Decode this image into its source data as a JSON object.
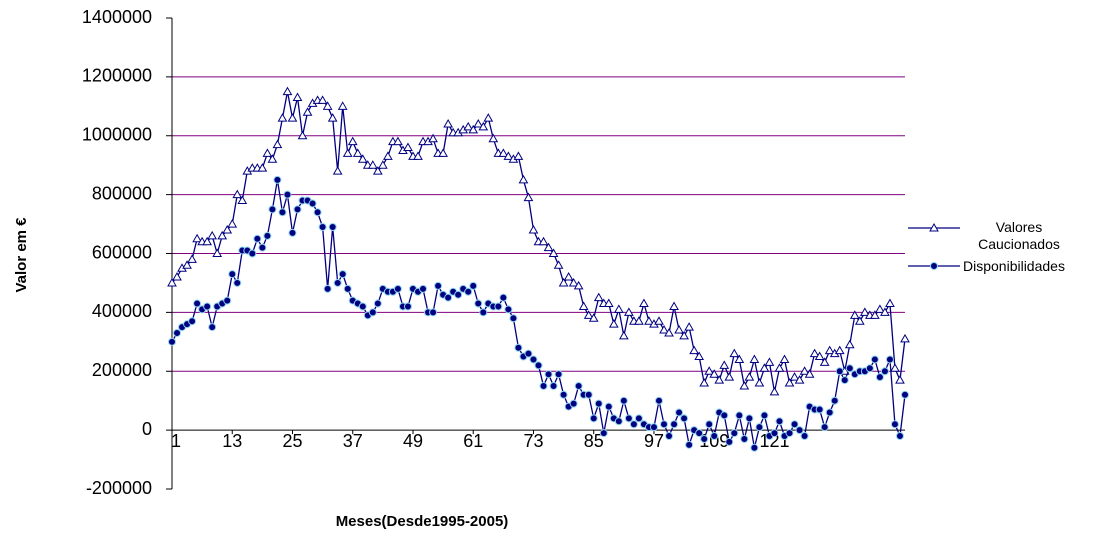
{
  "chart_data": {
    "type": "line",
    "x_label": "Meses(Desde1995-2005)",
    "y_label": "Valor em €",
    "x": [
      1,
      2,
      3,
      4,
      5,
      6,
      7,
      8,
      9,
      10,
      11,
      12,
      13,
      14,
      15,
      16,
      17,
      18,
      19,
      20,
      21,
      22,
      23,
      24,
      25,
      26,
      27,
      28,
      29,
      30,
      31,
      32,
      33,
      34,
      35,
      36,
      37,
      38,
      39,
      40,
      41,
      42,
      43,
      44,
      45,
      46,
      47,
      48,
      49,
      50,
      51,
      52,
      53,
      54,
      55,
      56,
      57,
      58,
      59,
      60,
      61,
      62,
      63,
      64,
      65,
      66,
      67,
      68,
      69,
      70,
      71,
      72,
      73,
      74,
      75,
      76,
      77,
      78,
      79,
      80,
      81,
      82,
      83,
      84,
      85,
      86,
      87,
      88,
      89,
      90,
      91,
      92,
      93,
      94,
      95,
      96,
      97,
      98,
      99,
      100,
      101,
      102,
      103,
      104,
      105,
      106,
      107,
      108,
      109,
      110,
      111,
      112,
      113,
      114,
      115,
      116,
      117,
      118,
      119,
      120,
      121,
      122,
      123,
      124,
      125,
      126,
      127,
      128,
      129,
      130,
      131,
      132,
      133,
      134,
      135,
      136,
      137,
      138,
      139,
      140,
      141,
      142,
      143,
      144,
      145,
      146,
      147
    ],
    "xlim": [
      1,
      147
    ],
    "xticks": [
      1,
      13,
      25,
      37,
      49,
      61,
      73,
      85,
      97,
      109,
      121
    ],
    "ylim": [
      -200000,
      1400000
    ],
    "yticks": [
      -200000,
      0,
      200000,
      400000,
      600000,
      800000,
      1000000,
      1200000,
      1400000
    ],
    "grid": true,
    "legend": "right",
    "series": [
      {
        "name": "Valores Caucionados",
        "color": "#000080",
        "marker": "triangle",
        "values": [
          500000,
          520000,
          550000,
          560000,
          580000,
          650000,
          640000,
          640000,
          660000,
          600000,
          660000,
          680000,
          700000,
          800000,
          780000,
          880000,
          890000,
          890000,
          890000,
          940000,
          920000,
          970000,
          1060000,
          1150000,
          1060000,
          1130000,
          1000000,
          1080000,
          1110000,
          1120000,
          1120000,
          1100000,
          1060000,
          880000,
          1100000,
          940000,
          980000,
          940000,
          920000,
          900000,
          900000,
          880000,
          900000,
          930000,
          980000,
          980000,
          950000,
          960000,
          930000,
          930000,
          980000,
          980000,
          990000,
          940000,
          940000,
          1040000,
          1010000,
          1010000,
          1020000,
          1030000,
          1020000,
          1040000,
          1030000,
          1060000,
          990000,
          940000,
          940000,
          930000,
          920000,
          930000,
          850000,
          790000,
          680000,
          640000,
          640000,
          620000,
          600000,
          560000,
          500000,
          520000,
          500000,
          490000,
          420000,
          390000,
          380000,
          450000,
          430000,
          430000,
          360000,
          410000,
          320000,
          400000,
          370000,
          370000,
          430000,
          370000,
          360000,
          370000,
          340000,
          330000,
          420000,
          340000,
          320000,
          350000,
          270000,
          250000,
          160000,
          200000,
          190000,
          170000,
          220000,
          180000,
          260000,
          240000,
          150000,
          180000,
          240000,
          160000,
          210000,
          230000,
          130000,
          210000,
          240000,
          160000,
          180000,
          170000,
          200000,
          190000,
          260000,
          250000,
          230000,
          270000,
          260000,
          270000,
          200000,
          290000,
          390000,
          370000,
          400000,
          390000,
          390000,
          410000,
          400000,
          430000,
          210000,
          170000,
          310000
        ]
      },
      {
        "name": "Disponibilidades",
        "color": "#000080",
        "marker": "circle",
        "values": [
          300000,
          330000,
          350000,
          360000,
          370000,
          430000,
          410000,
          420000,
          350000,
          420000,
          430000,
          440000,
          530000,
          500000,
          610000,
          610000,
          600000,
          650000,
          620000,
          660000,
          750000,
          850000,
          740000,
          800000,
          670000,
          750000,
          780000,
          780000,
          770000,
          740000,
          690000,
          480000,
          690000,
          500000,
          530000,
          480000,
          440000,
          430000,
          420000,
          390000,
          400000,
          430000,
          480000,
          470000,
          470000,
          480000,
          420000,
          420000,
          480000,
          470000,
          480000,
          400000,
          400000,
          490000,
          460000,
          450000,
          470000,
          460000,
          480000,
          470000,
          490000,
          430000,
          400000,
          430000,
          420000,
          420000,
          450000,
          410000,
          380000,
          280000,
          250000,
          260000,
          240000,
          220000,
          150000,
          190000,
          150000,
          190000,
          120000,
          80000,
          90000,
          150000,
          120000,
          120000,
          40000,
          90000,
          -10000,
          80000,
          40000,
          30000,
          100000,
          40000,
          20000,
          40000,
          20000,
          10000,
          10000,
          100000,
          20000,
          -20000,
          20000,
          60000,
          40000,
          -50000,
          0,
          -10000,
          -30000,
          20000,
          -20000,
          60000,
          50000,
          -40000,
          -10000,
          50000,
          -30000,
          40000,
          -60000,
          10000,
          50000,
          -20000,
          -10000,
          30000,
          -20000,
          -10000,
          20000,
          0,
          -20000,
          80000,
          70000,
          70000,
          10000,
          60000,
          100000,
          200000,
          170000,
          210000,
          190000,
          200000,
          200000,
          210000,
          240000,
          180000,
          200000,
          240000,
          20000,
          -20000,
          120000
        ]
      }
    ]
  }
}
